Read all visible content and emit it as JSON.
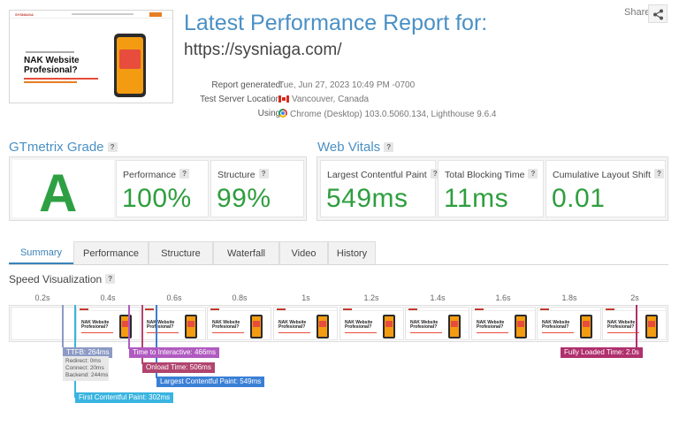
{
  "header": {
    "title": "Latest Performance Report for:",
    "url": "https://sysniaga.com/",
    "share_label": "Share"
  },
  "thumbnail": {
    "logo_text": "SYSNIAGA",
    "headline": "NAK Website Profesional?"
  },
  "meta": {
    "report_generated_label": "Report generated:",
    "report_generated_value": "Tue, Jun 27, 2023 10:49 PM -0700",
    "server_location_label": "Test Server Location:",
    "server_location_value": "Vancouver, Canada",
    "using_label": "Using:",
    "using_value": "Chrome (Desktop) 103.0.5060.134, Lighthouse 9.6.4"
  },
  "grade": {
    "section_title": "GTmetrix Grade",
    "letter": "A",
    "performance_label": "Performance",
    "performance_value": "100%",
    "structure_label": "Structure",
    "structure_value": "99%"
  },
  "vitals": {
    "section_title": "Web Vitals",
    "lcp_label": "Largest Contentful Paint",
    "lcp_value": "549ms",
    "tbt_label": "Total Blocking Time",
    "tbt_value": "11ms",
    "cls_label": "Cumulative Layout Shift",
    "cls_value": "0.01"
  },
  "tabs": [
    "Summary",
    "Performance",
    "Structure",
    "Waterfall",
    "Video",
    "History"
  ],
  "active_tab": "Summary",
  "speed": {
    "title": "Speed Visualization",
    "ticks": [
      "0.2s",
      "0.4s",
      "0.6s",
      "0.8s",
      "1s",
      "1.2s",
      "1.4s",
      "1.6s",
      "1.8s",
      "2s"
    ],
    "frame_title": "NAK Website Profesional?",
    "markers": {
      "ttfb": "TTFB: 264ms",
      "redirect": "Redirect: 0ms",
      "connect": "Connect: 20ms",
      "backend": "Backend: 244ms",
      "tti": "Time to Interactive: 466ms",
      "onload": "Onload Time: 506ms",
      "lcp": "Largest Contentful Paint: 549ms",
      "fcp": "First Contentful Paint: 302ms",
      "fully_loaded": "Fully Loaded Time: 2.0s"
    }
  },
  "colors": {
    "title_blue": "#4a90c5",
    "grade_green": "#2ea043",
    "value_green": "#2e9e3e",
    "ttfb": "#8c9ac4",
    "tti": "#b05bc0",
    "onload": "#b0456e",
    "lcp": "#3a7fd6",
    "fcp": "#3ab4e0",
    "fully_loaded": "#b0306e"
  }
}
